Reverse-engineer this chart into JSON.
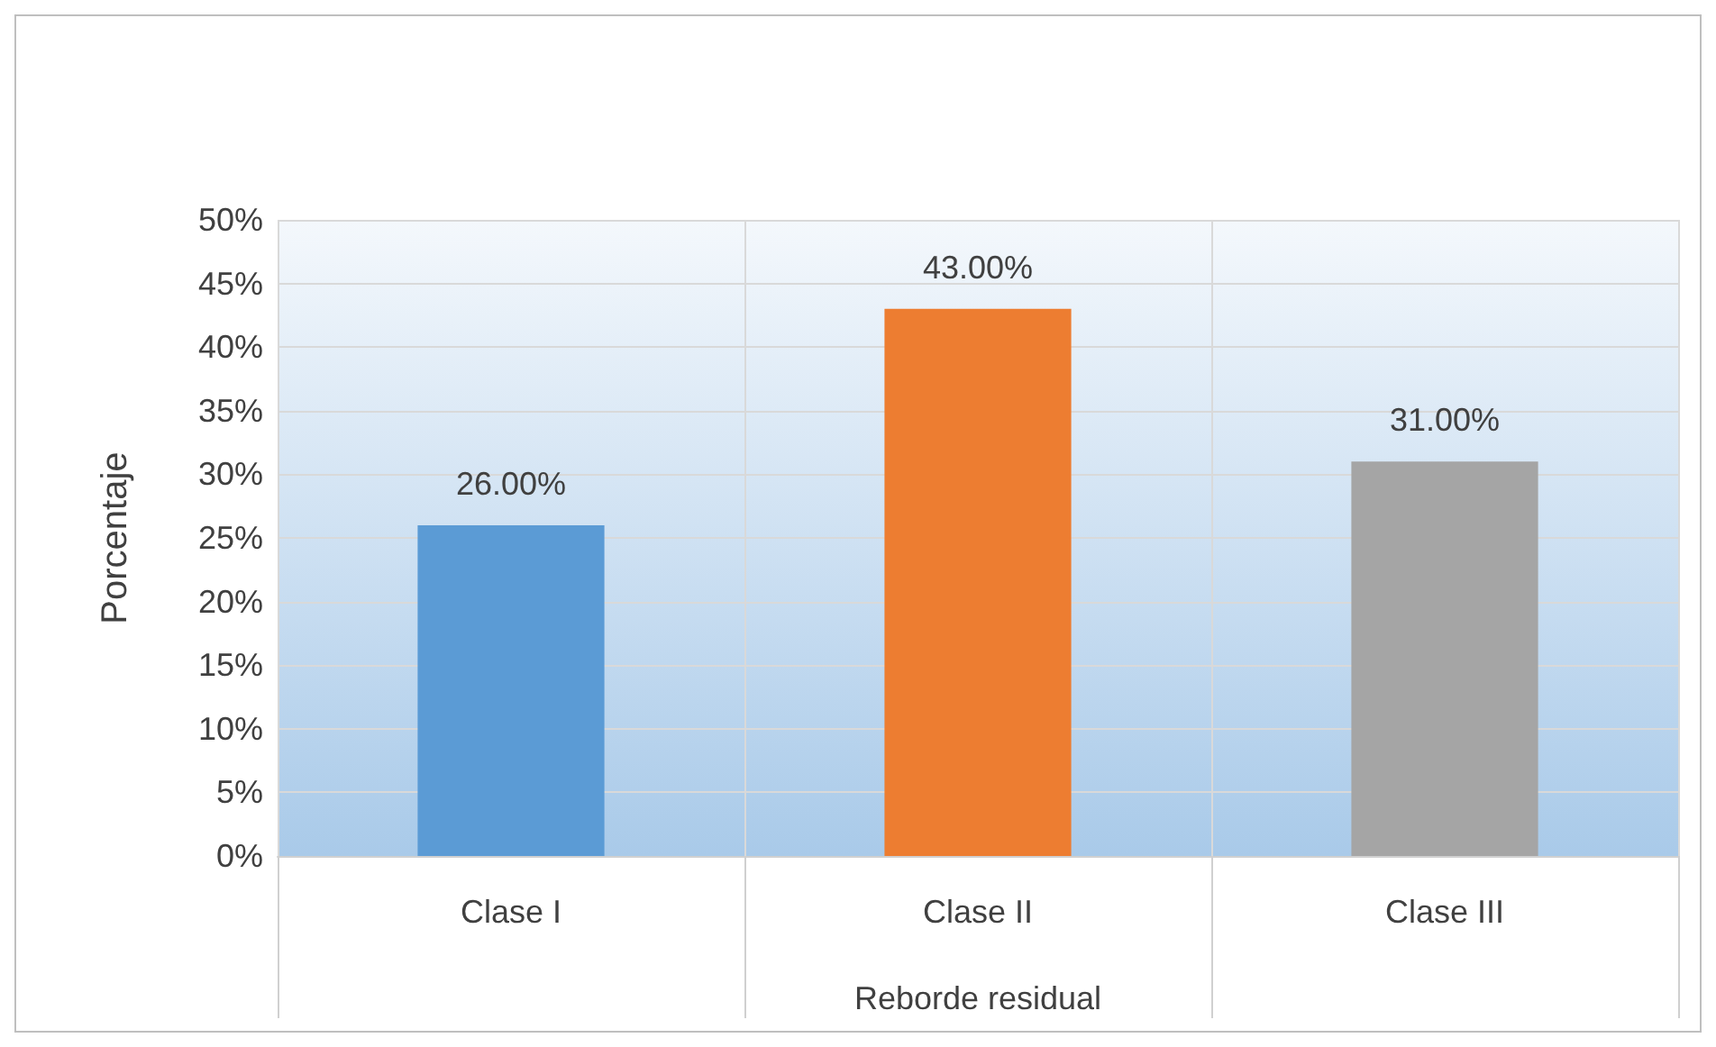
{
  "chart_data": {
    "type": "bar",
    "xlabel": "Reborde residual",
    "ylabel": "Porcentaje",
    "categories": [
      "Clase I",
      "Clase II",
      "Clase III"
    ],
    "values": [
      26,
      43,
      31
    ],
    "colors": [
      "#5b9bd5",
      "#ed7d31",
      "#a5a5a5"
    ],
    "value_labels": [
      "26.00%",
      "43.00%",
      "31.00%"
    ],
    "ylim": [
      0,
      50
    ],
    "yticks": [
      {
        "value": 0,
        "label": "0%"
      },
      {
        "value": 5,
        "label": "5%"
      },
      {
        "value": 10,
        "label": "10%"
      },
      {
        "value": 15,
        "label": "15%"
      },
      {
        "value": 20,
        "label": "20%"
      },
      {
        "value": 25,
        "label": "25%"
      },
      {
        "value": 30,
        "label": "30%"
      },
      {
        "value": 35,
        "label": "35%"
      },
      {
        "value": 40,
        "label": "40%"
      },
      {
        "value": 45,
        "label": "45%"
      },
      {
        "value": 50,
        "label": "50%"
      }
    ],
    "grid": true
  }
}
